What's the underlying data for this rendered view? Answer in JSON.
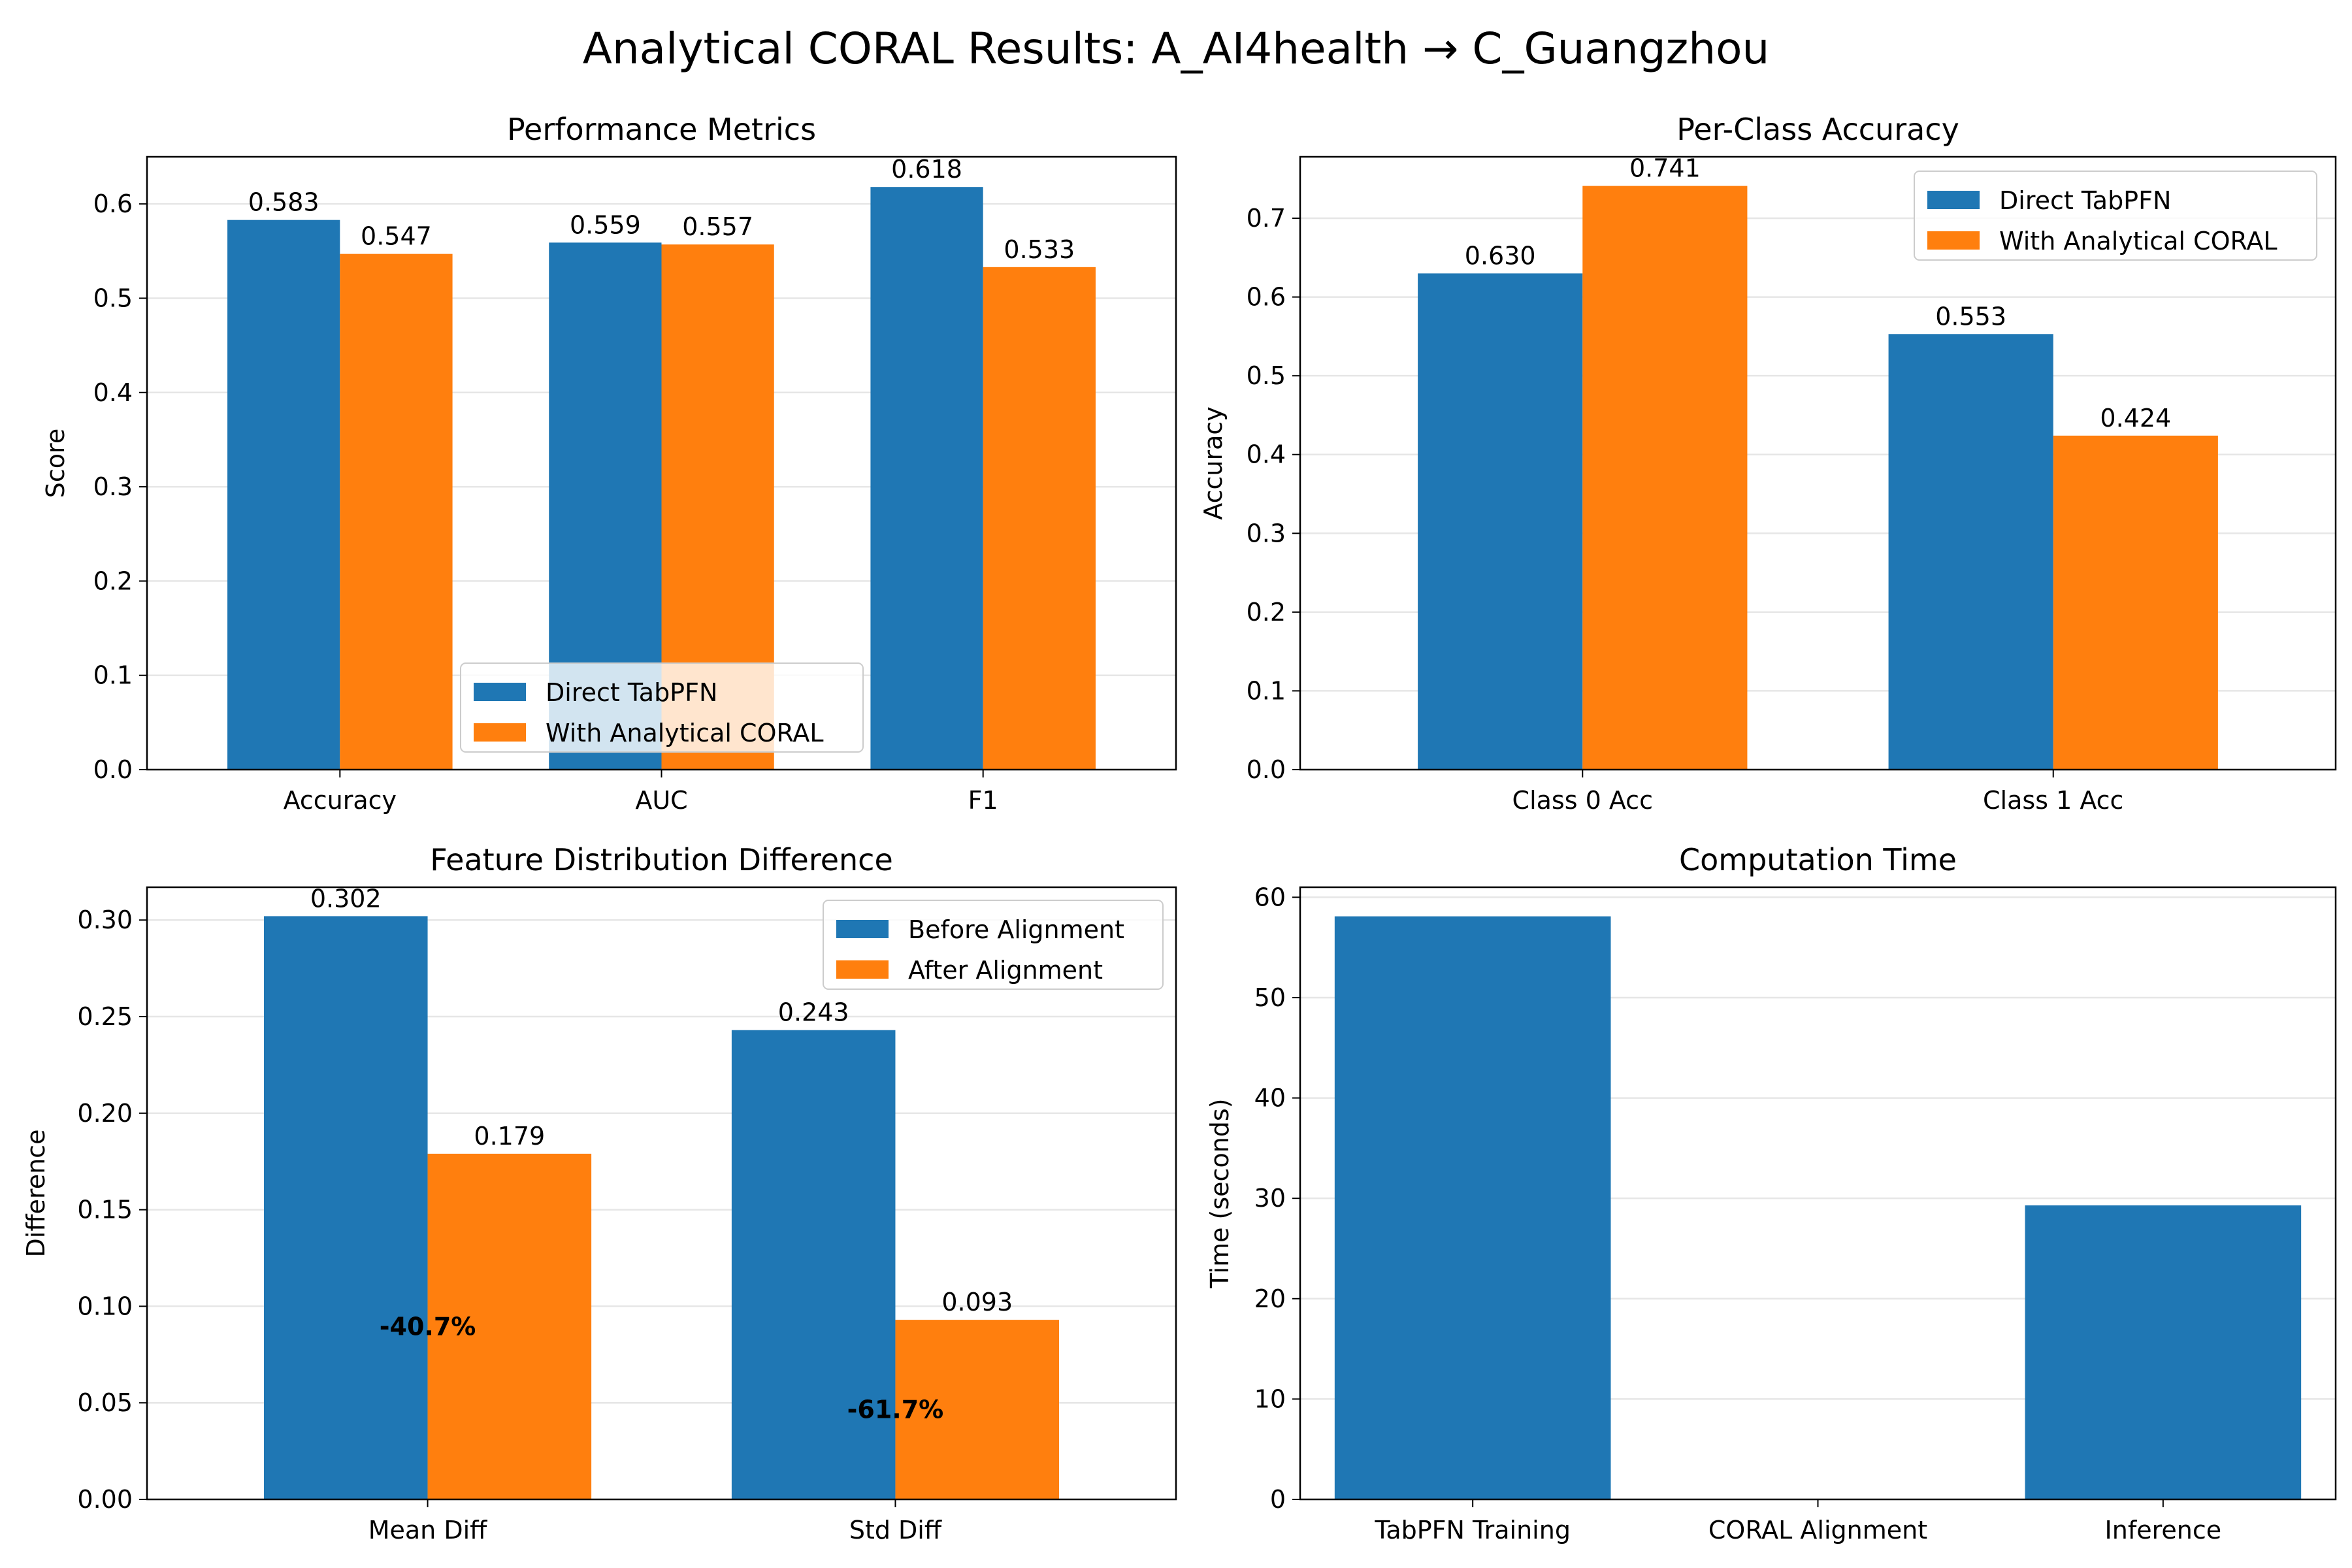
{
  "figure": {
    "title": "Analytical CORAL Results: A_AI4health → C_Guangzhou"
  },
  "colors": {
    "blue": "#1f77b4",
    "orange": "#ff7f0e",
    "grid": "#e6e6e6"
  },
  "chart_data": [
    {
      "id": "performance",
      "type": "bar",
      "title": "Performance Metrics",
      "xlabel": "",
      "ylabel": "Score",
      "categories": [
        "Accuracy",
        "AUC",
        "F1"
      ],
      "series": [
        {
          "name": "Direct TabPFN",
          "values": [
            0.583,
            0.559,
            0.618
          ],
          "labels": [
            "0.583",
            "0.559",
            "0.618"
          ]
        },
        {
          "name": "With Analytical CORAL",
          "values": [
            0.547,
            0.557,
            0.533
          ],
          "labels": [
            "0.547",
            "0.557",
            "0.533"
          ]
        }
      ],
      "ylim": [
        0,
        0.65
      ],
      "yticks": [
        "0.0",
        "0.1",
        "0.2",
        "0.3",
        "0.4",
        "0.5",
        "0.6"
      ],
      "grid": "y",
      "legend": "lower center"
    },
    {
      "id": "per_class",
      "type": "bar",
      "title": "Per-Class Accuracy",
      "xlabel": "",
      "ylabel": "Accuracy",
      "categories": [
        "Class 0 Acc",
        "Class 1 Acc"
      ],
      "series": [
        {
          "name": "Direct TabPFN",
          "values": [
            0.63,
            0.553
          ],
          "labels": [
            "0.630",
            "0.553"
          ]
        },
        {
          "name": "With Analytical CORAL",
          "values": [
            0.741,
            0.424
          ],
          "labels": [
            "0.741",
            "0.424"
          ]
        }
      ],
      "ylim": [
        0,
        0.778
      ],
      "yticks": [
        "0.0",
        "0.1",
        "0.2",
        "0.3",
        "0.4",
        "0.5",
        "0.6",
        "0.7"
      ],
      "grid": "y",
      "legend": "upper right"
    },
    {
      "id": "feature_diff",
      "type": "bar",
      "title": "Feature Distribution Difference",
      "xlabel": "",
      "ylabel": "Difference",
      "categories": [
        "Mean Diff",
        "Std Diff"
      ],
      "series": [
        {
          "name": "Before Alignment",
          "values": [
            0.302,
            0.243
          ],
          "labels": [
            "0.302",
            "0.243"
          ]
        },
        {
          "name": "After Alignment",
          "values": [
            0.179,
            0.093
          ],
          "labels": [
            "0.179",
            "0.093"
          ]
        }
      ],
      "annotations": [
        {
          "category": "Mean Diff",
          "text": "-40.7%",
          "y": 0.0895
        },
        {
          "category": "Std Diff",
          "text": "-61.7%",
          "y": 0.0465
        }
      ],
      "ylim": [
        0,
        0.317
      ],
      "yticks": [
        "0.00",
        "0.05",
        "0.10",
        "0.15",
        "0.20",
        "0.25",
        "0.30"
      ],
      "grid": "y",
      "legend": "upper right"
    },
    {
      "id": "time",
      "type": "bar",
      "title": "Computation Time",
      "xlabel": "",
      "ylabel": "Time (seconds)",
      "categories": [
        "TabPFN Training",
        "CORAL Alignment",
        "Inference"
      ],
      "values": [
        58.1,
        0.0,
        29.3
      ],
      "ylim": [
        0,
        61
      ],
      "yticks": [
        "0",
        "10",
        "20",
        "30",
        "40",
        "50",
        "60"
      ],
      "grid": "y"
    }
  ]
}
